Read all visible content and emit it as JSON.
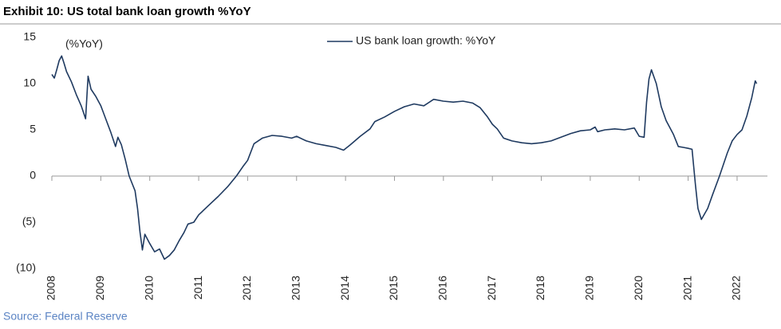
{
  "chart_data": {
    "type": "line",
    "title": "Exhibit 10: US total bank loan growth %YoY",
    "annotation": "(%YoY)",
    "source": "Source: Federal Reserve",
    "legend": "top-center",
    "x": [
      2008.0,
      2008.05,
      2008.1,
      2008.15,
      2008.2,
      2008.25,
      2008.3,
      2008.4,
      2008.5,
      2008.6,
      2008.69,
      2008.74,
      2008.8,
      2008.9,
      2009.0,
      2009.1,
      2009.2,
      2009.3,
      2009.35,
      2009.42,
      2009.5,
      2009.58,
      2009.7,
      2009.75,
      2009.8,
      2009.85,
      2009.9,
      2010.0,
      2010.1,
      2010.2,
      2010.3,
      2010.4,
      2010.5,
      2010.6,
      2010.7,
      2010.78,
      2010.9,
      2011.0,
      2011.2,
      2011.4,
      2011.6,
      2011.77,
      2011.9,
      2012.0,
      2012.13,
      2012.3,
      2012.5,
      2012.7,
      2012.9,
      2013.0,
      2013.2,
      2013.4,
      2013.6,
      2013.8,
      2013.96,
      2014.1,
      2014.3,
      2014.5,
      2014.6,
      2014.8,
      2015.0,
      2015.2,
      2015.4,
      2015.6,
      2015.8,
      2016.0,
      2016.2,
      2016.4,
      2016.6,
      2016.75,
      2016.9,
      2017.0,
      2017.1,
      2017.23,
      2017.4,
      2017.6,
      2017.8,
      2018.0,
      2018.2,
      2018.4,
      2018.6,
      2018.8,
      2019.0,
      2019.1,
      2019.15,
      2019.3,
      2019.5,
      2019.7,
      2019.9,
      2020.0,
      2020.1,
      2020.15,
      2020.2,
      2020.25,
      2020.35,
      2020.45,
      2020.55,
      2020.7,
      2020.8,
      2020.9,
      2021.0,
      2021.08,
      2021.15,
      2021.2,
      2021.27,
      2021.4,
      2021.5,
      2021.64,
      2021.8,
      2021.9,
      2022.0,
      2022.1,
      2022.2,
      2022.3,
      2022.37,
      2022.4
    ],
    "series": [
      {
        "name": "US bank loan growth: %YoY",
        "color": "#1f3a60",
        "values": [
          11,
          10.6,
          11.5,
          12.5,
          13,
          12.2,
          11.3,
          10.2,
          8.8,
          7.6,
          6.2,
          10.8,
          9.4,
          8.6,
          7.6,
          6.2,
          4.8,
          3.2,
          4.2,
          3.4,
          1.8,
          0,
          -1.6,
          -3.5,
          -6,
          -8,
          -6.3,
          -7.3,
          -8.2,
          -7.9,
          -9,
          -8.6,
          -8,
          -7,
          -6.1,
          -5.2,
          -5,
          -4.2,
          -3.2,
          -2.2,
          -1.1,
          0,
          1,
          1.7,
          3.5,
          4.1,
          4.4,
          4.3,
          4.1,
          4.3,
          3.8,
          3.5,
          3.3,
          3.1,
          2.8,
          3.4,
          4.3,
          5.1,
          5.9,
          6.4,
          7,
          7.5,
          7.8,
          7.6,
          8.3,
          8.1,
          8,
          8.1,
          7.9,
          7.4,
          6.4,
          5.6,
          5.1,
          4.1,
          3.8,
          3.6,
          3.5,
          3.6,
          3.8,
          4.2,
          4.6,
          4.9,
          5,
          5.3,
          4.8,
          5,
          5.1,
          5,
          5.2,
          4.3,
          4.2,
          8,
          10.5,
          11.5,
          10,
          7.5,
          6,
          4.5,
          3.2,
          3.1,
          3,
          2.9,
          -1,
          -3.5,
          -4.7,
          -3.5,
          -2,
          0,
          2.5,
          3.8,
          4.5,
          5,
          6.5,
          8.5,
          10.3,
          10
        ]
      }
    ],
    "xlim": [
      2008,
      2022.62
    ],
    "xticks": [
      2008,
      2009,
      2010,
      2011,
      2012,
      2013,
      2014,
      2015,
      2016,
      2017,
      2018,
      2019,
      2020,
      2021,
      2022
    ],
    "ylim": [
      -10,
      15
    ],
    "yticks": [
      15,
      10,
      5,
      0,
      {
        "value": -5,
        "label": "(5)"
      },
      {
        "value": -10,
        "label": "(10)"
      }
    ]
  }
}
